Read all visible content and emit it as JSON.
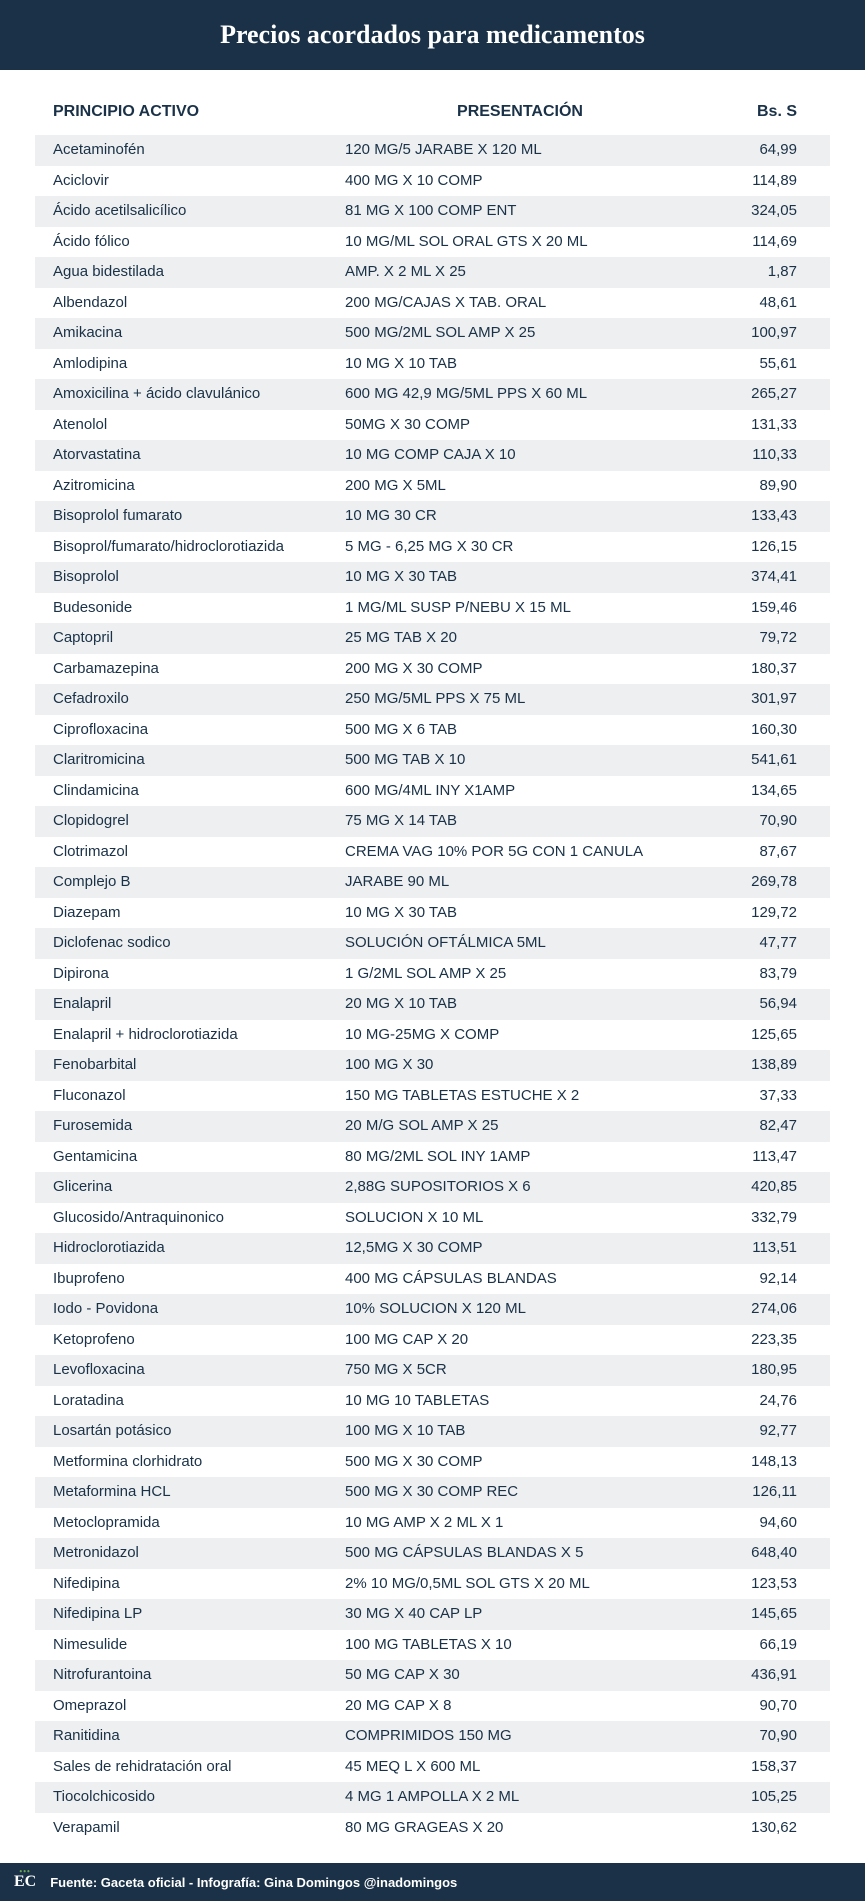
{
  "title": "Precios acordados para medicamentos",
  "columns": [
    "PRINCIPIO ACTIVO",
    "PRESENTACIÓN",
    "Bs. S"
  ],
  "colors": {
    "header_bg": "#1a3147",
    "header_text": "#ffffff",
    "row_alt_bg": "#edeff0",
    "text": "#1a3147",
    "footer_bg": "#1a3147",
    "footer_accent": "#6aa84f"
  },
  "typography": {
    "title_fontsize": 26,
    "header_fontsize": 16,
    "row_fontsize": 15,
    "footer_fontsize": 13
  },
  "rows": [
    {
      "principio": "Acetaminofén",
      "presentacion": "120 MG/5 JARABE X 120 ML",
      "precio": "64,99"
    },
    {
      "principio": "Aciclovir",
      "presentacion": "400 MG X 10 COMP",
      "precio": "114,89"
    },
    {
      "principio": "Ácido acetilsalicílico",
      "presentacion": "81 MG X 100 COMP ENT",
      "precio": "324,05"
    },
    {
      "principio": "Ácido fólico",
      "presentacion": "10 MG/ML SOL ORAL GTS X 20 ML",
      "precio": "114,69"
    },
    {
      "principio": "Agua bidestilada",
      "presentacion": "AMP. X 2  ML X 25",
      "precio": "1,87"
    },
    {
      "principio": "Albendazol",
      "presentacion": "200 MG/CAJAS X TAB. ORAL",
      "precio": "48,61"
    },
    {
      "principio": "Amikacina",
      "presentacion": "500 MG/2ML SOL AMP X 25",
      "precio": "100,97"
    },
    {
      "principio": "Amlodipina",
      "presentacion": "10 MG X 10 TAB",
      "precio": "55,61"
    },
    {
      "principio": "Amoxicilina + ácido clavulánico",
      "presentacion": "600 MG 42,9 MG/5ML PPS X 60 ML",
      "precio": "265,27"
    },
    {
      "principio": "Atenolol",
      "presentacion": "50MG X 30 COMP",
      "precio": "131,33"
    },
    {
      "principio": "Atorvastatina",
      "presentacion": "10 MG COMP CAJA X 10",
      "precio": "110,33"
    },
    {
      "principio": "Azitromicina",
      "presentacion": "200 MG X 5ML",
      "precio": "89,90"
    },
    {
      "principio": "Bisoprolol fumarato",
      "presentacion": "10 MG 30 CR",
      "precio": "133,43"
    },
    {
      "principio": "Bisoprol/fumarato/hidroclorotiazida",
      "presentacion": "5 MG - 6,25 MG X 30 CR",
      "precio": "126,15"
    },
    {
      "principio": "Bisoprolol",
      "presentacion": "10 MG X 30 TAB",
      "precio": "374,41"
    },
    {
      "principio": "Budesonide",
      "presentacion": "1 MG/ML SUSP P/NEBU X 15 ML",
      "precio": "159,46"
    },
    {
      "principio": "Captopril",
      "presentacion": "25 MG TAB X 20",
      "precio": "79,72"
    },
    {
      "principio": "Carbamazepina",
      "presentacion": "200 MG X 30 COMP",
      "precio": "180,37"
    },
    {
      "principio": "Cefadroxilo",
      "presentacion": "250 MG/5ML PPS X 75 ML",
      "precio": "301,97"
    },
    {
      "principio": "Ciprofloxacina",
      "presentacion": "500 MG X 6 TAB",
      "precio": "160,30"
    },
    {
      "principio": "Claritromicina",
      "presentacion": "500 MG TAB X 10",
      "precio": "541,61"
    },
    {
      "principio": "Clindamicina",
      "presentacion": "600 MG/4ML INY X1AMP",
      "precio": "134,65"
    },
    {
      "principio": "Clopidogrel",
      "presentacion": "75 MG X 14 TAB",
      "precio": "70,90"
    },
    {
      "principio": "Clotrimazol",
      "presentacion": "CREMA VAG 10% POR 5G CON 1 CANULA",
      "precio": "87,67"
    },
    {
      "principio": "Complejo B",
      "presentacion": "JARABE 90 ML",
      "precio": "269,78"
    },
    {
      "principio": "Diazepam",
      "presentacion": "10 MG X 30 TAB",
      "precio": "129,72"
    },
    {
      "principio": "Diclofenac sodico",
      "presentacion": "SOLUCIÓN OFTÁLMICA 5ML",
      "precio": "47,77"
    },
    {
      "principio": "Dipirona",
      "presentacion": "1 G/2ML SOL AMP X 25",
      "precio": "83,79"
    },
    {
      "principio": "Enalapril",
      "presentacion": "20 MG X 10 TAB",
      "precio": "56,94"
    },
    {
      "principio": "Enalapril + hidroclorotiazida",
      "presentacion": "10 MG-25MG X COMP",
      "precio": "125,65"
    },
    {
      "principio": "Fenobarbital",
      "presentacion": "100 MG X 30",
      "precio": "138,89"
    },
    {
      "principio": "Fluconazol",
      "presentacion": "150 MG TABLETAS ESTUCHE X 2",
      "precio": "37,33"
    },
    {
      "principio": "Furosemida",
      "presentacion": "20 M/G SOL AMP X 25",
      "precio": "82,47"
    },
    {
      "principio": "Gentamicina",
      "presentacion": "80 MG/2ML SOL INY 1AMP",
      "precio": "113,47"
    },
    {
      "principio": "Glicerina",
      "presentacion": "2,88G SUPOSITORIOS X 6",
      "precio": "420,85"
    },
    {
      "principio": "Glucosido/Antraquinonico",
      "presentacion": "SOLUCION X 10 ML",
      "precio": "332,79"
    },
    {
      "principio": "Hidroclorotiazida",
      "presentacion": "12,5MG X 30 COMP",
      "precio": "113,51"
    },
    {
      "principio": "Ibuprofeno",
      "presentacion": "400 MG CÁPSULAS BLANDAS",
      "precio": "92,14"
    },
    {
      "principio": "Iodo - Povidona",
      "presentacion": "10% SOLUCION X 120 ML",
      "precio": "274,06"
    },
    {
      "principio": "Ketoprofeno",
      "presentacion": "100 MG CAP X 20",
      "precio": "223,35"
    },
    {
      "principio": "Levofloxacina",
      "presentacion": "750 MG X 5CR",
      "precio": "180,95"
    },
    {
      "principio": "Loratadina",
      "presentacion": "10 MG 10 TABLETAS",
      "precio": "24,76"
    },
    {
      "principio": "Losartán potásico",
      "presentacion": "100 MG X 10 TAB",
      "precio": "92,77"
    },
    {
      "principio": "Metformina clorhidrato",
      "presentacion": "500 MG X 30 COMP",
      "precio": "148,13"
    },
    {
      "principio": "Metaformina HCL",
      "presentacion": "500 MG X 30 COMP REC",
      "precio": "126,11"
    },
    {
      "principio": "Metoclopramida",
      "presentacion": "10 MG AMP X 2 ML X 1",
      "precio": "94,60"
    },
    {
      "principio": "Metronidazol",
      "presentacion": "500 MG CÁPSULAS BLANDAS X 5",
      "precio": "648,40"
    },
    {
      "principio": "Nifedipina",
      "presentacion": "2% 10 MG/0,5ML SOL GTS X 20 ML",
      "precio": "123,53"
    },
    {
      "principio": "Nifedipina LP",
      "presentacion": "30 MG X 40 CAP LP",
      "precio": "145,65"
    },
    {
      "principio": "Nimesulide",
      "presentacion": "100 MG TABLETAS X 10",
      "precio": "66,19"
    },
    {
      "principio": "Nitrofurantoina",
      "presentacion": "50 MG CAP X 30",
      "precio": "436,91"
    },
    {
      "principio": "Omeprazol",
      "presentacion": "20 MG CAP X 8",
      "precio": "90,70"
    },
    {
      "principio": "Ranitidina",
      "presentacion": "COMPRIMIDOS 150 MG",
      "precio": "70,90"
    },
    {
      "principio": "Sales de rehidratación oral",
      "presentacion": "45 MEQ L X 600 ML",
      "precio": "158,37"
    },
    {
      "principio": "Tiocolchicosido",
      "presentacion": "4 MG 1 AMPOLLA X 2 ML",
      "precio": "105,25"
    },
    {
      "principio": "Verapamil",
      "presentacion": "80 MG GRAGEAS X 20",
      "precio": "130,62"
    }
  ],
  "footer": {
    "logo": "EC",
    "text": "Fuente: Gaceta oficial - Infografía: Gina Domingos @inadomingos"
  }
}
